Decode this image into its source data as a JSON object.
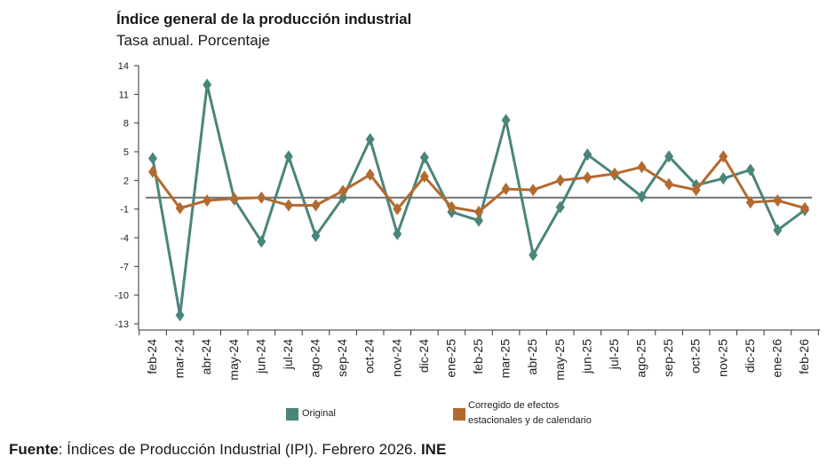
{
  "colors": {
    "original": "#4a857a",
    "adjusted": "#b36a2f",
    "reference_line": "#707070",
    "axis": "#333333"
  },
  "chart_data": {
    "type": "line",
    "title": "Índice general de la producción industrial",
    "subtitle": "Tasa anual. Porcentaje",
    "categories": [
      "feb-24",
      "mar-24",
      "abr-24",
      "may-24",
      "jun-24",
      "jul-24",
      "ago-24",
      "sep-24",
      "oct-24",
      "nov-24",
      "dic-24",
      "ene-25",
      "feb-25",
      "mar-25",
      "abr-25",
      "may-25",
      "jun-25",
      "jul-25",
      "ago-25",
      "sep-25",
      "oct-25",
      "nov-25",
      "dic-25",
      "ene-26",
      "feb-26"
    ],
    "yticks": [
      14,
      11,
      8,
      5,
      2,
      -1,
      -4,
      -7,
      -10,
      -13
    ],
    "ylim": [
      -13,
      14
    ],
    "reference_value": 0.2,
    "series": [
      {
        "name": "Original",
        "marker": "diamond",
        "values": [
          4.3,
          -12.1,
          12.0,
          0.0,
          -4.4,
          4.5,
          -3.8,
          0.2,
          6.3,
          -3.6,
          4.4,
          -1.3,
          -2.2,
          8.3,
          -5.8,
          -0.8,
          4.7,
          2.6,
          0.3,
          4.5,
          1.5,
          2.2,
          3.1,
          -3.2,
          -1.1
        ]
      },
      {
        "name": "Corregido de efectos estacionales y de calendario",
        "marker": "diamond",
        "values": [
          2.9,
          -0.9,
          -0.1,
          0.1,
          0.2,
          -0.6,
          -0.6,
          0.9,
          2.6,
          -1.0,
          2.4,
          -0.8,
          -1.3,
          1.1,
          1.0,
          2.0,
          2.3,
          2.7,
          3.4,
          1.6,
          1.0,
          4.5,
          -0.3,
          -0.1,
          -0.9
        ]
      }
    ]
  },
  "legend": {
    "original_label": "Original",
    "adjusted_label_line1": "Corregido de efectos",
    "adjusted_label_line2": "estacionales y de calendario"
  },
  "footer": {
    "source_label": "Fuente",
    "source_text": ": Índices de Producción Industrial (IPI). Febrero 2026. ",
    "source_org": "INE"
  }
}
